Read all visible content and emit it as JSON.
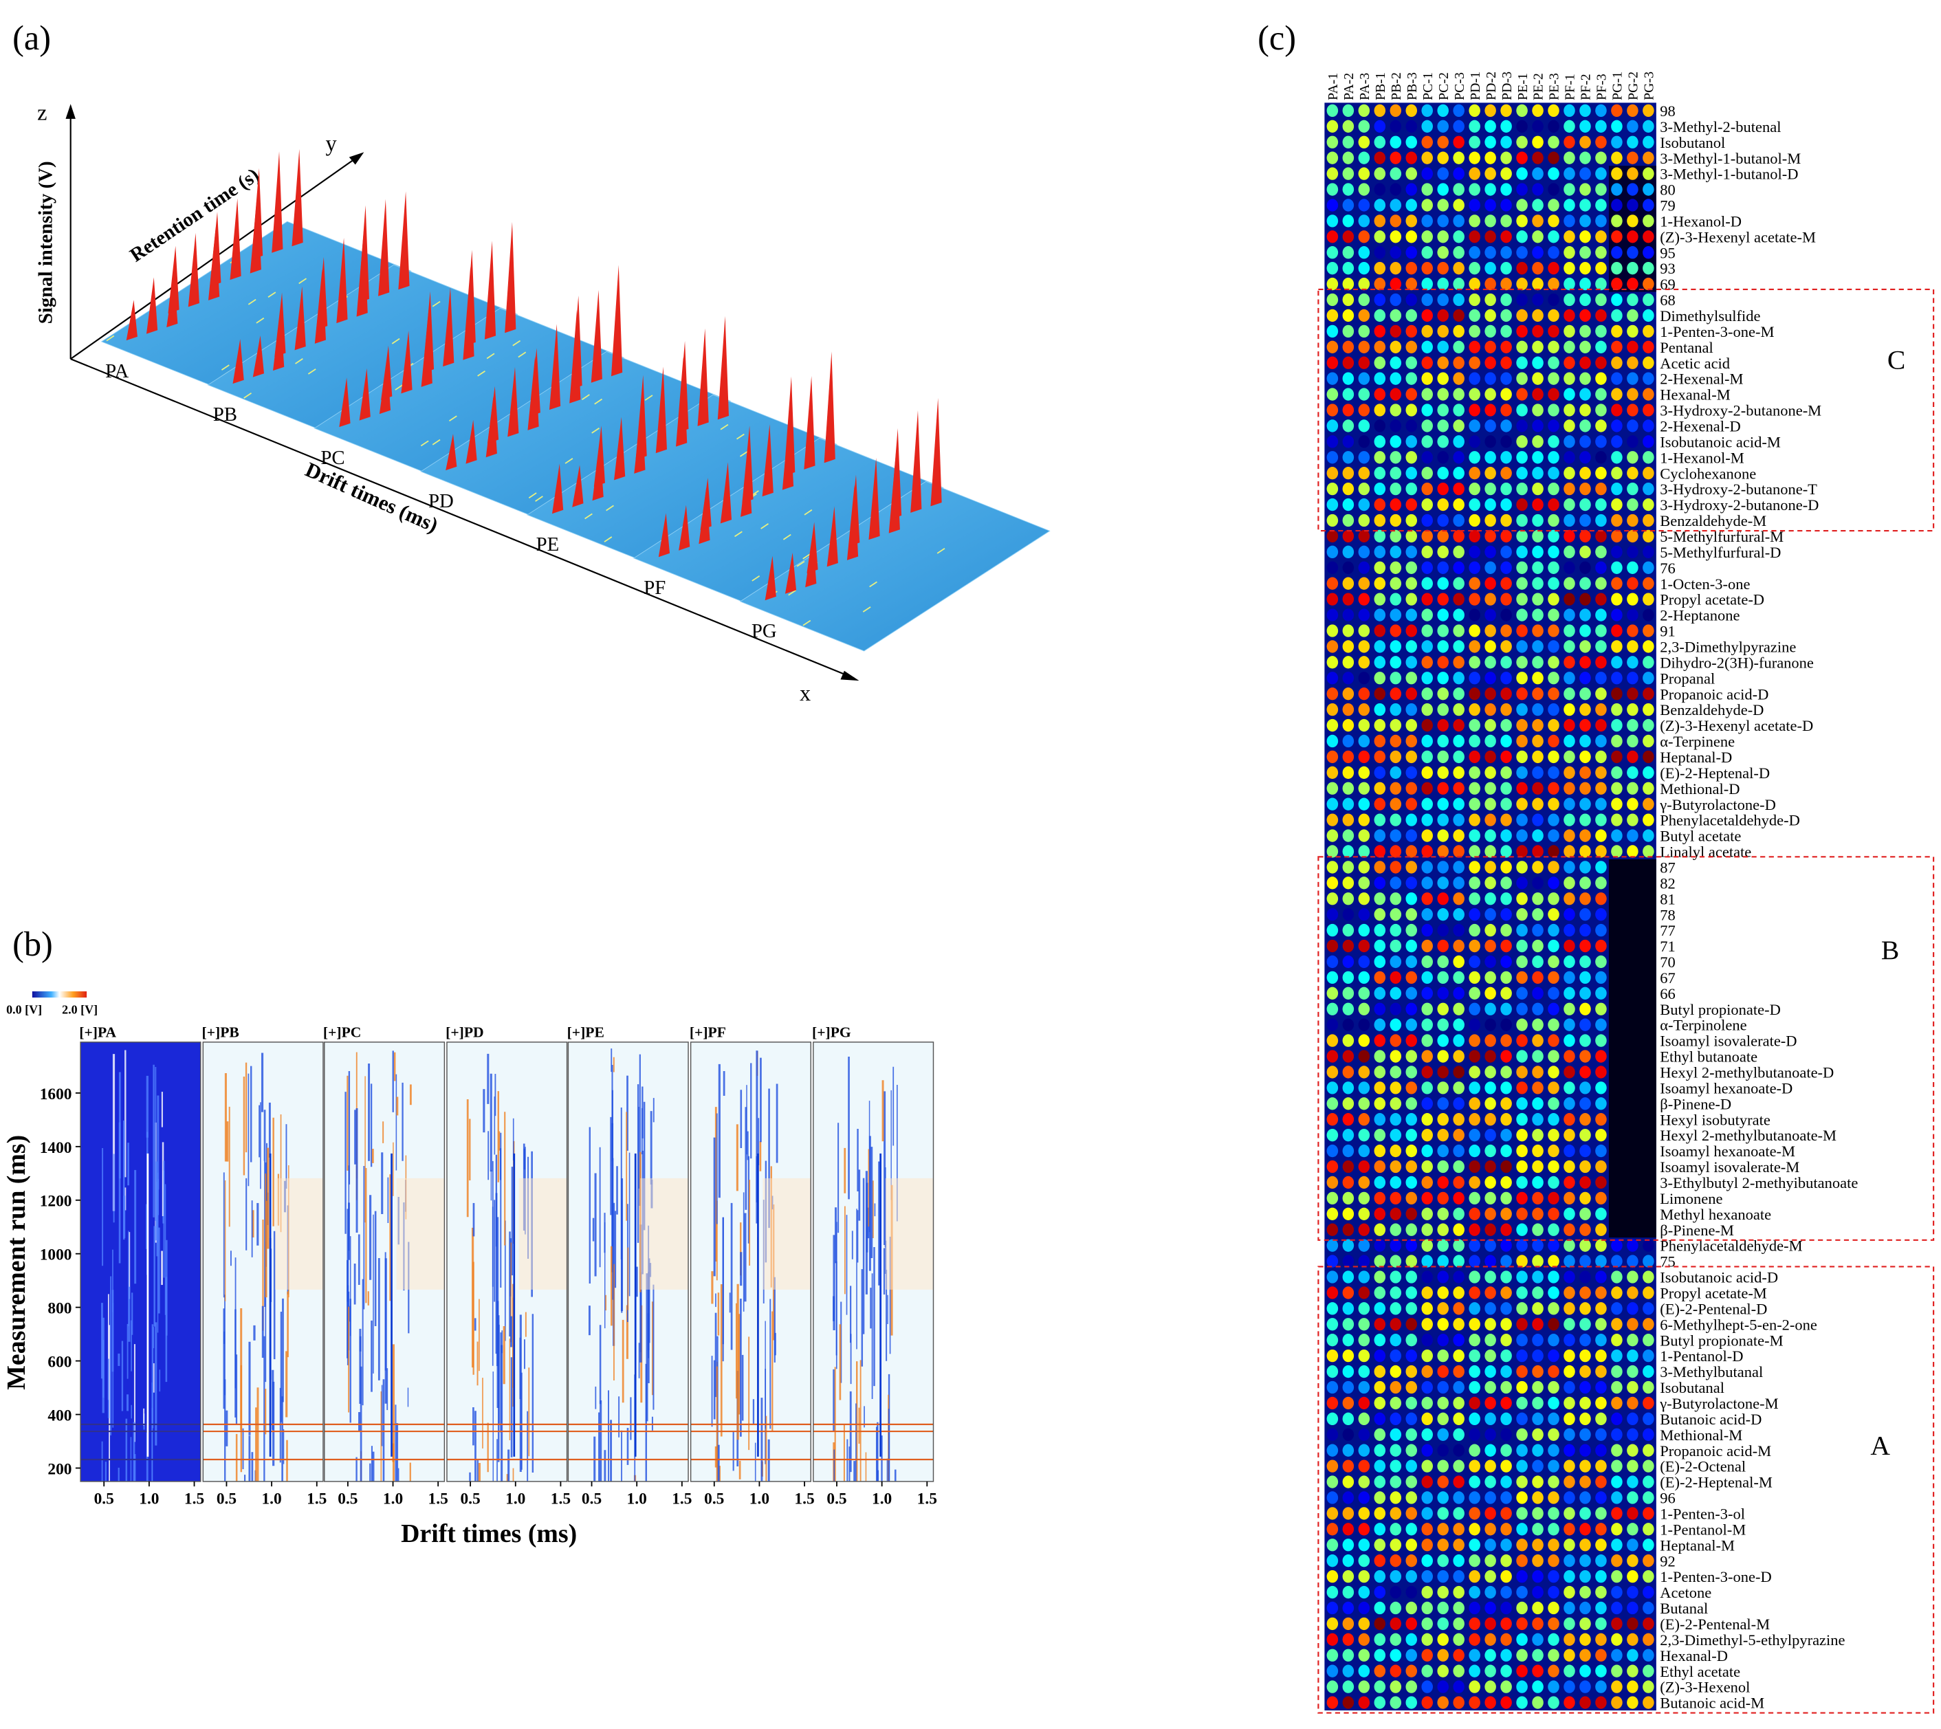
{
  "figure": {
    "panel_a": {
      "label": "(a)",
      "z_axis": "z",
      "y_axis": "y",
      "x_axis": "x",
      "z_title": "Signal intensity (V)",
      "y_title": "Retention time (s)",
      "x_title": "Drift times (ms)",
      "samples": [
        "PA",
        "PB",
        "PC",
        "PD",
        "PE",
        "PF",
        "PG"
      ]
    },
    "panel_b": {
      "label": "(b)",
      "colorbar_min": "0.0 [V]",
      "colorbar_max": "2.0 [V]",
      "subplots": [
        "[+]PA",
        "[+]PB",
        "[+]PC",
        "[+]PD",
        "[+]PE",
        "[+]PF",
        "[+]PG"
      ],
      "xlim": [
        0.24,
        1.57
      ],
      "xticks": [
        0.5,
        {
          "value": 1,
          "label": "1.0"
        },
        1.5
      ],
      "ylim": [
        150,
        1790
      ],
      "yticks": [
        200,
        400,
        600,
        800,
        1000,
        1200,
        1400,
        1600
      ],
      "x_title": "Drift times (ms)",
      "y_title": "Measurement run (ms)"
    },
    "panel_c": {
      "label": "(c)",
      "columns": [
        "PA-1",
        "PA-2",
        "PA-3",
        "PB-1",
        "PB-2",
        "PB-3",
        "PC-1",
        "PC-2",
        "PC-3",
        "PD-1",
        "PD-2",
        "PD-3",
        "PE-1",
        "PE-2",
        "PE-3",
        "PF-1",
        "PF-2",
        "PF-3",
        "PG-1",
        "PG-2",
        "PG-3"
      ],
      "rows": [
        "98",
        "3-Methyl-2-butenal",
        "Isobutanol",
        "3-Methyl-1-butanol-M",
        "3-Methyl-1-butanol-D",
        "80",
        "79",
        "1-Hexanol-D",
        "(Z)-3-Hexenyl acetate-M",
        "95",
        "93",
        "69",
        "68",
        "Dimethylsulfide",
        "1-Penten-3-one-M",
        "Pentanal",
        "Acetic acid",
        "2-Hexenal-M",
        "Hexanal-M",
        "3-Hydroxy-2-butanone-M",
        "2-Hexenal-D",
        "Isobutanoic acid-M",
        "1-Hexanol-M",
        "Cyclohexanone",
        "3-Hydroxy-2-butanone-T",
        "3-Hydroxy-2-butanone-D",
        "Benzaldehyde-M",
        "5-Methylfurfural-M",
        "5-Methylfurfural-D",
        "76",
        "1-Octen-3-one",
        "Propyl acetate-D",
        "2-Heptanone",
        "91",
        "2,3-Dimethylpyrazine",
        "Dihydro-2(3H)-furanone",
        "Propanal",
        "Propanoic acid-D",
        "Benzaldehyde-D",
        "(Z)-3-Hexenyl acetate-D",
        "α-Terpinene",
        "Heptanal-D",
        "(E)-2-Heptenal-D",
        "Methional-D",
        "γ-Butyrolactone-D",
        "Phenylacetaldehyde-D",
        "Butyl acetate",
        "Linalyl acetate",
        "87",
        "82",
        "81",
        "78",
        "77",
        "71",
        "70",
        "67",
        "66",
        "Butyl propionate-D",
        "α-Terpinolene",
        "Isoamyl isovalerate-D",
        "Ethyl butanoate",
        "Hexyl 2-methylbutanoate-D",
        "Isoamyl hexanoate-D",
        "β-Pinene-D",
        "Hexyl isobutyrate",
        "Hexyl 2-methylbutanoate-M",
        "Isoamyl hexanoate-M",
        "Isoamyl isovalerate-M",
        "3-Ethylbutyl 2-methyibutanoate",
        "Limonene",
        "Methyl hexanoate",
        "β-Pinene-M",
        "Phenylacetaldehyde-M",
        "75",
        "Isobutanoic acid-D",
        "Propyl acetate-M",
        "(E)-2-Pentenal-D",
        "6-Methylhept-5-en-2-one",
        "Butyl propionate-M",
        "1-Pentanol-D",
        "3-Methylbutanal",
        "Isobutanal",
        "γ-Butyrolactone-M",
        "Butanoic acid-D",
        "Methional-M",
        "Propanoic acid-M",
        "(E)-2-Octenal",
        "(E)-2-Heptenal-M",
        "96",
        "1-Penten-3-ol",
        "1-Pentanol-M",
        "Heptanal-M",
        "92",
        "1-Penten-3-one-D",
        "Acetone",
        "Butanal",
        "(E)-2-Pentenal-M",
        "2,3-Dimethyl-5-ethylpyrazine",
        "Hexanal-D",
        "Ethyl acetate",
        "(Z)-3-Hexenol",
        "Butanoic acid-M"
      ],
      "region_labels": [
        "C",
        "B",
        "A"
      ]
    }
  }
}
